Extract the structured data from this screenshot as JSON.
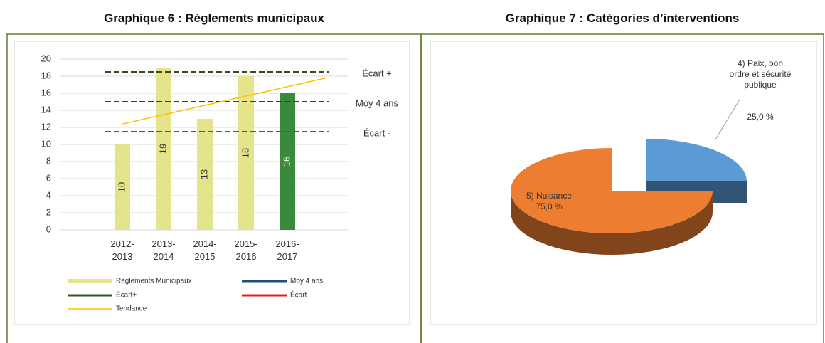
{
  "chart_data": [
    {
      "type": "bar",
      "title": "Graphique 6 : Règlements municipaux",
      "categories": [
        "2012-2013",
        "2013-2014",
        "2014-2015",
        "2015-2016",
        "2016-2017"
      ],
      "series": [
        {
          "name": "Règlements Municipaux",
          "color": "#e4e48a",
          "colors": [
            "#e4e48a",
            "#e4e48a",
            "#e4e48a",
            "#e4e48a",
            "#3b8a3b"
          ],
          "label_colors": [
            "#333333",
            "#333333",
            "#333333",
            "#333333",
            "#ffffff"
          ],
          "values": [
            10,
            19,
            13,
            18,
            16
          ]
        }
      ],
      "lines": [
        {
          "name": "Moy 4 ans",
          "label": "Moy 4 ans",
          "value": 15,
          "color": "#2030d8",
          "legend_color": "#1f4e79"
        },
        {
          "name": "Écart+",
          "label": "Écart +",
          "value": 18.5,
          "color": "#3a4a1e",
          "legend_color": "#375623"
        },
        {
          "name": "Écart-",
          "label": "Écart -",
          "value": 11.5,
          "color": "#e02020",
          "legend_color": "#e02020"
        }
      ],
      "trend": {
        "name": "Tendance",
        "color": "#ffc000",
        "values": [
          12.4,
          17.8
        ]
      },
      "ylim": [
        0,
        20
      ],
      "yticks": [
        0,
        2,
        4,
        6,
        8,
        10,
        12,
        14,
        16,
        18,
        20
      ],
      "grid": true
    },
    {
      "type": "pie",
      "title": "Graphique 7 : Catégories d’interventions",
      "categories": [
        "4) Paix, bon ordre et sécurité publique",
        "5) Nuisance"
      ],
      "values": [
        25,
        75
      ],
      "value_labels": [
        "25,0 %",
        "75,0 %"
      ],
      "colors": [
        "#5b9bd5",
        "#ed7d31"
      ],
      "explode": [
        true,
        false
      ],
      "style": "3d"
    }
  ]
}
